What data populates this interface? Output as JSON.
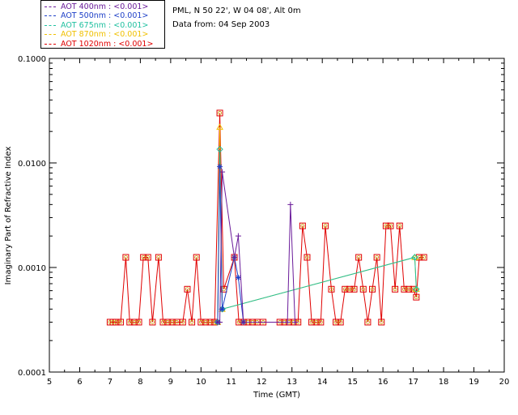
{
  "header": {
    "site": "PML, N 50 22', W 04 08', Alt 0m",
    "date": "Data from: 04 Sep 2003"
  },
  "chart_data": {
    "type": "line",
    "title": "",
    "xlabel": "Time (GMT)",
    "ylabel": "Imaginary Part of Refractive Index",
    "xlim": [
      5,
      20
    ],
    "ylim": [
      0.0001,
      0.1
    ],
    "yscale": "log",
    "x_ticks": [
      "5",
      "6",
      "7",
      "8",
      "9",
      "10",
      "11",
      "12",
      "13",
      "14",
      "15",
      "16",
      "17",
      "18",
      "19",
      "20"
    ],
    "y_ticks": [
      "0.0001",
      "0.0010",
      "0.0100",
      "0.1000"
    ],
    "grid": false,
    "legend_position": "top-left, outside plot",
    "series": [
      {
        "name": "AOT  400nm : <0.001>",
        "color": "#6a1b9a",
        "marker": "plus",
        "x": [
          10.55,
          10.62,
          10.7,
          11.1,
          11.23,
          11.4,
          12.85,
          12.95,
          13.1
        ],
        "y": [
          0.0003,
          0.0003,
          0.0082,
          0.00125,
          0.002,
          0.0003,
          0.0003,
          0.004,
          0.0003
        ]
      },
      {
        "name": "AOT  500nm : <0.001>",
        "color": "#1e40c8",
        "marker": "asterisk",
        "x": [
          10.55,
          10.62,
          10.7,
          11.1,
          11.23,
          11.4
        ],
        "y": [
          0.0003,
          0.0092,
          0.0004,
          0.00125,
          0.0008,
          0.0003
        ]
      },
      {
        "name": "AOT  675nm : <0.001>",
        "color": "#20c0a0",
        "marker": "diamond",
        "x": [
          10.55,
          10.62,
          10.7,
          17.05,
          17.1
        ],
        "y": [
          0.0003,
          0.0135,
          0.0004,
          0.00125,
          0.00062
        ]
      },
      {
        "name": "AOT  870nm : <0.001>",
        "color": "#f0c000",
        "marker": "triangle",
        "x": [
          10.55,
          10.62,
          10.7,
          17.05,
          17.1
        ],
        "y": [
          0.0003,
          0.022,
          0.0004,
          0.00125,
          0.00062
        ]
      },
      {
        "name": "AOT 1020nm : <0.001>",
        "color": "#e00000",
        "marker": "square",
        "x": [
          7.0,
          7.1,
          7.2,
          7.35,
          7.52,
          7.65,
          7.8,
          7.95,
          8.1,
          8.25,
          8.4,
          8.6,
          8.75,
          8.9,
          9.05,
          9.2,
          9.4,
          9.55,
          9.7,
          9.85,
          10.0,
          10.15,
          10.3,
          10.45,
          10.62,
          10.75,
          11.1,
          11.25,
          11.4,
          11.55,
          11.7,
          11.85,
          12.05,
          12.6,
          12.75,
          12.9,
          13.05,
          13.2,
          13.35,
          13.5,
          13.65,
          13.8,
          13.95,
          14.1,
          14.3,
          14.45,
          14.6,
          14.75,
          14.9,
          15.05,
          15.2,
          15.35,
          15.5,
          15.65,
          15.8,
          15.95,
          16.1,
          16.25,
          16.4,
          16.55,
          16.7,
          16.85,
          17.0,
          17.1,
          17.2,
          17.35
        ],
        "y": [
          0.0003,
          0.0003,
          0.0003,
          0.0003,
          0.00125,
          0.0003,
          0.0003,
          0.0003,
          0.00125,
          0.00125,
          0.0003,
          0.00125,
          0.0003,
          0.0003,
          0.0003,
          0.0003,
          0.0003,
          0.00062,
          0.0003,
          0.00125,
          0.0003,
          0.0003,
          0.0003,
          0.0003,
          0.03,
          0.00062,
          0.00125,
          0.0003,
          0.0003,
          0.0003,
          0.0003,
          0.0003,
          0.0003,
          0.0003,
          0.0003,
          0.0003,
          0.0003,
          0.0003,
          0.0025,
          0.00125,
          0.0003,
          0.0003,
          0.0003,
          0.0025,
          0.00062,
          0.0003,
          0.0003,
          0.00062,
          0.00062,
          0.00062,
          0.00125,
          0.00062,
          0.0003,
          0.00062,
          0.00125,
          0.0003,
          0.0025,
          0.0025,
          0.00062,
          0.0025,
          0.00062,
          0.00062,
          0.00062,
          0.00052,
          0.00125,
          0.00125
        ]
      }
    ]
  }
}
